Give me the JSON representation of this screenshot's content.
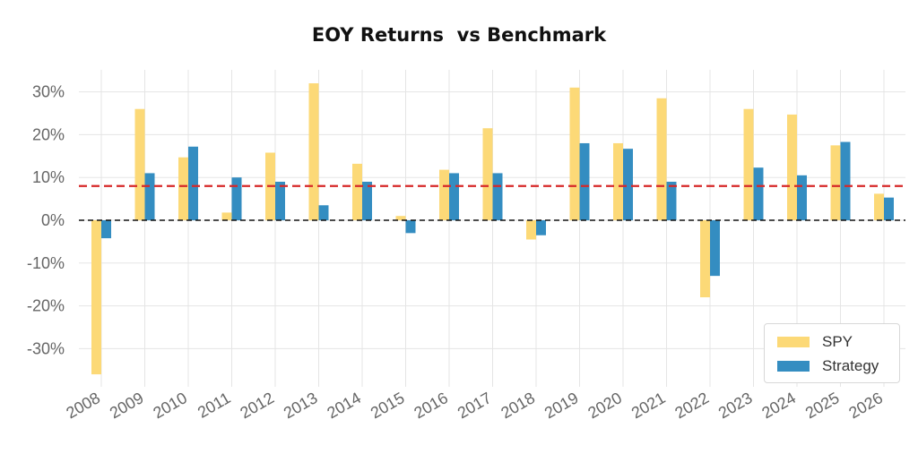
{
  "colors": {
    "spy": "#fcd977",
    "strategy": "#348dc1",
    "benchmark_line": "#d62728",
    "zero_line": "#111111",
    "grid": "#e5e5e5"
  },
  "chart_data": {
    "type": "bar",
    "title": "EOY Returns  vs Benchmark",
    "xlabel": "",
    "ylabel": "",
    "categories": [
      "2008",
      "2009",
      "2010",
      "2011",
      "2012",
      "2013",
      "2014",
      "2015",
      "2016",
      "2017",
      "2018",
      "2019",
      "2020",
      "2021",
      "2022",
      "2023",
      "2024",
      "2025",
      "2026"
    ],
    "series": [
      {
        "name": "SPY",
        "color": "#fcd977",
        "values": [
          -36,
          26,
          14.7,
          1.8,
          15.8,
          32,
          13.2,
          1,
          11.8,
          21.5,
          -4.5,
          31,
          18,
          28.5,
          -18,
          26,
          24.7,
          17.5,
          6.2
        ]
      },
      {
        "name": "Strategy",
        "color": "#348dc1",
        "values": [
          -4.2,
          11,
          17.2,
          10,
          9,
          3.5,
          9,
          -3,
          11,
          11,
          -3.5,
          18,
          16.7,
          9,
          -13,
          12.3,
          10.5,
          18.3,
          5.3
        ]
      }
    ],
    "ylim": [
      -36,
      33
    ],
    "yticks": [
      30,
      20,
      10,
      0,
      -10,
      -20,
      -30
    ],
    "ytick_labels": [
      "30%",
      "20%",
      "10%",
      "0%",
      "-10%",
      "-20%",
      "-30%"
    ],
    "reference_lines": [
      {
        "label": "mean",
        "value": 8,
        "style": "dashed",
        "color": "#d62728"
      },
      {
        "label": "zero",
        "value": 0,
        "style": "dashed",
        "color": "#111111"
      }
    ],
    "grid": true,
    "legend_position": "bottom-right"
  }
}
